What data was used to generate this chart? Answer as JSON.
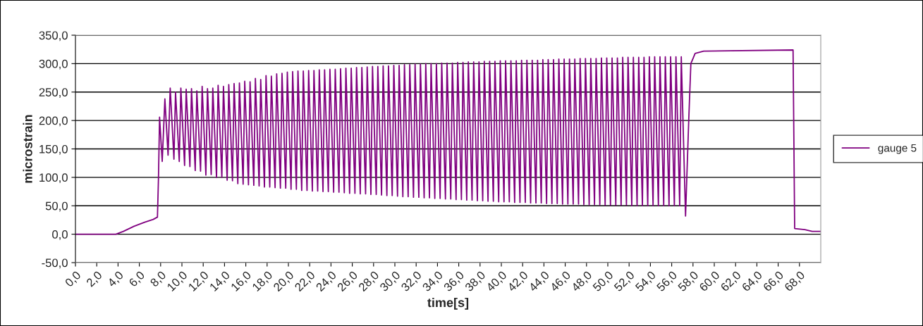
{
  "chart_data": {
    "type": "line",
    "xlabel": "time[s]",
    "ylabel": "microstrain",
    "xlim": [
      0,
      70
    ],
    "xticks": [
      {
        "value": 0,
        "label": "0,0"
      },
      {
        "value": 2,
        "label": "2,0"
      },
      {
        "value": 4,
        "label": "4,0"
      },
      {
        "value": 6,
        "label": "6,0"
      },
      {
        "value": 8,
        "label": "8,0"
      },
      {
        "value": 10,
        "label": "10,0"
      },
      {
        "value": 12,
        "label": "12,0"
      },
      {
        "value": 14,
        "label": "14,0"
      },
      {
        "value": 16,
        "label": "16,0"
      },
      {
        "value": 18,
        "label": "18,0"
      },
      {
        "value": 20,
        "label": "20,0"
      },
      {
        "value": 22,
        "label": "22,0"
      },
      {
        "value": 24,
        "label": "24,0"
      },
      {
        "value": 26,
        "label": "26,0"
      },
      {
        "value": 28,
        "label": "28,0"
      },
      {
        "value": 30,
        "label": "30,0"
      },
      {
        "value": 32,
        "label": "32,0"
      },
      {
        "value": 34,
        "label": "34,0"
      },
      {
        "value": 36,
        "label": "36,0"
      },
      {
        "value": 38,
        "label": "38,0"
      },
      {
        "value": 40,
        "label": "40,0"
      },
      {
        "value": 42,
        "label": "42,0"
      },
      {
        "value": 44,
        "label": "44,0"
      },
      {
        "value": 46,
        "label": "46,0"
      },
      {
        "value": 48,
        "label": "48,0"
      },
      {
        "value": 50,
        "label": "50,0"
      },
      {
        "value": 52,
        "label": "52,0"
      },
      {
        "value": 54,
        "label": "54,0"
      },
      {
        "value": 56,
        "label": "56,0"
      },
      {
        "value": 58,
        "label": "58,0"
      },
      {
        "value": 60,
        "label": "60,0"
      },
      {
        "value": 62,
        "label": "62,0"
      },
      {
        "value": 64,
        "label": "64,0"
      },
      {
        "value": 66,
        "label": "66,0"
      },
      {
        "value": 68,
        "label": "68,0"
      }
    ],
    "ylim": [
      -50,
      350
    ],
    "yticks": [
      {
        "value": -50,
        "label": "-50,0"
      },
      {
        "value": 0,
        "label": "0,0"
      },
      {
        "value": 50,
        "label": "50,0"
      },
      {
        "value": 100,
        "label": "100,0"
      },
      {
        "value": 150,
        "label": "150,0"
      },
      {
        "value": 200,
        "label": "200,0"
      },
      {
        "value": 250,
        "label": "250,0"
      },
      {
        "value": 300,
        "label": "300,0"
      },
      {
        "value": 350,
        "label": "350,0"
      }
    ],
    "grid": "y",
    "legend": "right",
    "marker": "none",
    "line_style": "solid",
    "series": [
      {
        "name": "gauge 5",
        "color": "#800080",
        "x": [
          0,
          3.8,
          4.5,
          5.5,
          6.5,
          7.3,
          7.7,
          7.8,
          7.9,
          8.15,
          8.4,
          8.7,
          8.9,
          9.25,
          9.4,
          9.75,
          9.9,
          10.25,
          10.4,
          10.75,
          10.9,
          11.25,
          11.4,
          11.75,
          11.9,
          12.25,
          12.4,
          12.75,
          12.9,
          13.25,
          13.4,
          13.75,
          13.9,
          14.25,
          14.4,
          14.75,
          14.9,
          15.25,
          15.4,
          15.75,
          15.9,
          16.25,
          16.4,
          16.75,
          16.9,
          17.25,
          17.4,
          17.75,
          17.9,
          18.25,
          18.4,
          18.75,
          18.9,
          19.25,
          19.4,
          19.75,
          19.9,
          20.25,
          20.4,
          20.75,
          20.9,
          21.25,
          21.4,
          21.75,
          21.9,
          22.25,
          22.4,
          22.75,
          22.9,
          23.25,
          23.4,
          23.75,
          23.9,
          24.25,
          24.4,
          24.75,
          24.9,
          25.25,
          25.4,
          25.75,
          25.9,
          26.25,
          26.4,
          26.75,
          26.9,
          27.25,
          27.4,
          27.75,
          27.9,
          28.25,
          28.4,
          28.75,
          28.9,
          29.25,
          29.4,
          29.75,
          29.9,
          30.25,
          30.4,
          30.75,
          30.9,
          31.25,
          31.4,
          31.75,
          31.9,
          32.25,
          32.4,
          32.75,
          32.9,
          33.25,
          33.4,
          33.75,
          33.9,
          34.25,
          34.4,
          34.75,
          34.9,
          35.25,
          35.4,
          35.75,
          35.9,
          36.25,
          36.4,
          36.75,
          36.9,
          37.25,
          37.4,
          37.75,
          37.9,
          38.25,
          38.4,
          38.75,
          38.9,
          39.25,
          39.4,
          39.75,
          39.9,
          40.25,
          40.4,
          40.75,
          40.9,
          41.25,
          41.4,
          41.75,
          41.9,
          42.25,
          42.4,
          42.75,
          42.9,
          43.25,
          43.4,
          43.75,
          43.9,
          44.25,
          44.4,
          44.75,
          44.9,
          45.25,
          45.4,
          45.75,
          45.9,
          46.25,
          46.4,
          46.75,
          46.9,
          47.25,
          47.4,
          47.75,
          47.9,
          48.25,
          48.4,
          48.75,
          48.9,
          49.25,
          49.4,
          49.75,
          49.9,
          50.25,
          50.4,
          50.75,
          50.9,
          51.25,
          51.4,
          51.75,
          51.9,
          52.25,
          52.4,
          52.75,
          52.9,
          53.25,
          53.4,
          53.75,
          53.9,
          54.25,
          54.4,
          54.75,
          54.9,
          55.25,
          55.4,
          55.75,
          55.9,
          56.25,
          56.4,
          56.75,
          56.9,
          57.3,
          57.6,
          57.8,
          58.2,
          59,
          67.4,
          67.55,
          68.5,
          69.2,
          70
        ],
        "values": [
          0,
          0,
          5,
          14,
          21,
          26,
          30,
          100,
          206,
          128,
          238,
          139,
          257,
          132,
          250,
          128,
          257,
          121,
          255,
          119,
          256,
          112,
          252,
          111,
          260,
          104,
          256,
          105,
          257,
          100,
          262,
          100,
          260,
          95,
          263,
          94,
          265,
          89,
          266,
          88,
          269,
          87,
          268,
          86,
          274,
          85,
          272,
          83,
          279,
          83,
          278,
          82,
          282,
          81,
          283,
          81,
          285,
          79,
          286,
          79,
          287,
          77,
          287,
          77,
          288,
          76,
          288,
          76,
          289,
          75,
          289,
          75,
          290,
          74,
          290,
          74,
          291,
          73,
          292,
          72,
          292,
          72,
          293,
          71,
          293,
          71,
          294,
          70,
          295,
          70,
          295,
          69,
          296,
          68,
          296,
          68,
          297,
          67,
          297,
          66,
          298,
          66,
          298,
          65,
          299,
          65,
          299,
          64,
          300,
          64,
          300,
          63,
          300,
          63,
          301,
          62,
          301,
          62,
          301,
          61,
          302,
          61,
          302,
          60,
          303,
          60,
          303,
          59,
          303,
          59,
          304,
          58,
          304,
          58,
          304,
          57,
          305,
          57,
          305,
          57,
          305,
          56,
          305,
          56,
          306,
          56,
          306,
          55,
          306,
          55,
          306,
          55,
          307,
          54,
          307,
          54,
          307,
          54,
          308,
          53,
          308,
          53,
          308,
          53,
          308,
          53,
          309,
          52,
          309,
          52,
          309,
          52,
          309,
          52,
          310,
          51,
          310,
          51,
          310,
          51,
          310,
          51,
          311,
          51,
          311,
          50,
          311,
          50,
          311,
          50,
          311,
          50,
          312,
          50,
          312,
          50,
          312,
          50,
          312,
          50,
          312,
          50,
          312,
          50,
          312,
          32,
          200,
          300,
          318,
          322,
          324,
          10,
          8,
          5,
          5
        ]
      }
    ]
  }
}
